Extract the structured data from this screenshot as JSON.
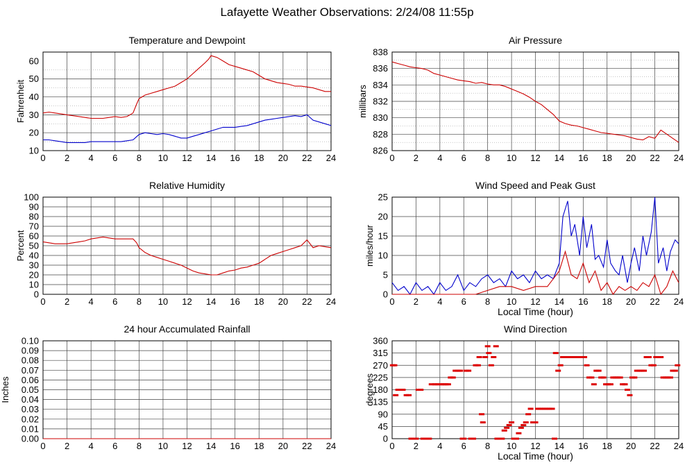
{
  "page_title": "Lafayette Weather Observations: 2/24/08 11:55p",
  "chart_data": [
    {
      "id": "temp",
      "type": "line",
      "title": "Temperature and Dewpoint",
      "xlabel": "",
      "ylabel": "Fahrenheit",
      "xlim": [
        0,
        24
      ],
      "ylim": [
        10,
        65
      ],
      "xticks": [
        0,
        2,
        4,
        6,
        8,
        10,
        12,
        14,
        16,
        18,
        20,
        22,
        24
      ],
      "yticks": [
        10,
        20,
        30,
        40,
        50,
        60
      ],
      "yticks_minor": [
        15,
        25,
        35,
        45,
        55
      ],
      "grid": true,
      "series": [
        {
          "color": "#cc0000",
          "x": [
            0,
            0.5,
            1,
            1.5,
            2,
            2.5,
            3,
            3.5,
            4,
            4.5,
            5,
            5.5,
            6,
            6.5,
            7,
            7.5,
            7.8,
            8,
            8.5,
            9,
            9.5,
            10,
            10.5,
            11,
            11.5,
            12,
            12.5,
            13,
            13.5,
            13.8,
            14,
            14.5,
            15,
            15.5,
            16,
            16.5,
            17,
            17.5,
            18,
            18.5,
            19,
            19.5,
            20,
            20.5,
            21,
            21.5,
            22,
            22.5,
            23,
            23.5,
            24
          ],
          "y": [
            31,
            31.5,
            31,
            30.5,
            30,
            29.5,
            29,
            28.5,
            28,
            28,
            28,
            28.5,
            29,
            28.5,
            29,
            31,
            36,
            39,
            41,
            42,
            43,
            44,
            45,
            46,
            48,
            50,
            53,
            56,
            59,
            61,
            63,
            62,
            60,
            58,
            57,
            56,
            55,
            54,
            52,
            50,
            49,
            48,
            47.5,
            47,
            46,
            46,
            45.5,
            45,
            44,
            43,
            43
          ]
        },
        {
          "color": "#0000cc",
          "x": [
            0,
            0.5,
            1,
            1.5,
            2,
            2.5,
            3,
            3.5,
            4,
            4.5,
            5,
            5.5,
            6,
            6.5,
            7,
            7.5,
            8,
            8.5,
            9,
            9.5,
            10,
            10.5,
            11,
            11.5,
            12,
            12.5,
            13,
            13.5,
            14,
            14.5,
            15,
            15.5,
            16,
            16.5,
            17,
            17.5,
            18,
            18.5,
            19,
            19.5,
            20,
            20.5,
            21,
            21.5,
            22,
            22.5,
            23,
            23.5,
            24
          ],
          "y": [
            16,
            16,
            15.5,
            15,
            14.5,
            14.5,
            14.5,
            14.5,
            15,
            15,
            15,
            15,
            15,
            15,
            15.5,
            16,
            19,
            20,
            19.5,
            19,
            19.5,
            19,
            18,
            17,
            17,
            18,
            19,
            20,
            21,
            22,
            23,
            23,
            23,
            23.5,
            24,
            25,
            26,
            27,
            27.5,
            28,
            28.5,
            29,
            29.5,
            29,
            30,
            27,
            26,
            25,
            24
          ]
        }
      ]
    },
    {
      "id": "pressure",
      "type": "line",
      "title": "Air Pressure",
      "xlabel": "",
      "ylabel": "millibars",
      "xlim": [
        0,
        24
      ],
      "ylim": [
        826,
        838
      ],
      "xticks": [
        0,
        2,
        4,
        6,
        8,
        10,
        12,
        14,
        16,
        18,
        20,
        22,
        24
      ],
      "yticks": [
        826,
        828,
        830,
        832,
        834,
        836,
        838
      ],
      "yticks_minor": [
        827,
        829,
        831,
        833,
        835,
        837
      ],
      "grid": true,
      "series": [
        {
          "color": "#cc0000",
          "x": [
            0,
            0.5,
            1,
            1.5,
            2,
            2.5,
            3,
            3.5,
            4,
            4.5,
            5,
            5.5,
            6,
            6.5,
            7,
            7.5,
            8,
            8.5,
            9,
            9.5,
            10,
            10.5,
            11,
            11.5,
            12,
            12.5,
            13,
            13.5,
            14,
            14.5,
            15,
            15.5,
            16,
            16.5,
            17,
            17.5,
            18,
            18.5,
            19,
            19.5,
            20,
            20.5,
            21,
            21.5,
            22,
            22.5,
            23,
            23.5,
            24
          ],
          "y": [
            836.8,
            836.6,
            836.4,
            836.2,
            836.1,
            836.0,
            835.8,
            835.4,
            835.2,
            835.0,
            834.8,
            834.6,
            834.5,
            834.4,
            834.2,
            834.3,
            834.1,
            834.0,
            834.0,
            833.8,
            833.5,
            833.2,
            832.9,
            832.5,
            832.0,
            831.6,
            831.0,
            830.4,
            829.6,
            829.3,
            829.1,
            829.0,
            828.8,
            828.6,
            828.4,
            828.2,
            828.1,
            828.0,
            827.9,
            827.8,
            827.6,
            827.4,
            827.3,
            827.7,
            827.5,
            828.5,
            828.0,
            827.5,
            827.0
          ]
        }
      ]
    },
    {
      "id": "humidity",
      "type": "line",
      "title": "Relative Humidity",
      "xlabel": "",
      "ylabel": "Percent",
      "xlim": [
        0,
        24
      ],
      "ylim": [
        0,
        100
      ],
      "xticks": [
        0,
        2,
        4,
        6,
        8,
        10,
        12,
        14,
        16,
        18,
        20,
        22,
        24
      ],
      "yticks": [
        0,
        10,
        20,
        30,
        40,
        50,
        60,
        70,
        80,
        90,
        100
      ],
      "yticks_minor": [],
      "grid": true,
      "series": [
        {
          "color": "#cc0000",
          "x": [
            0,
            0.5,
            1,
            1.5,
            2,
            2.5,
            3,
            3.5,
            4,
            4.5,
            5,
            5.5,
            6,
            6.5,
            7,
            7.5,
            7.8,
            8,
            8.5,
            9,
            9.5,
            10,
            10.5,
            11,
            11.5,
            12,
            12.5,
            13,
            13.5,
            14,
            14.5,
            15,
            15.5,
            16,
            16.5,
            17,
            17.5,
            18,
            18.5,
            19,
            19.5,
            20,
            20.5,
            21,
            21.5,
            22,
            22.5,
            23,
            23.5,
            24
          ],
          "y": [
            54,
            53,
            52,
            52,
            52,
            53,
            54,
            55,
            57,
            58,
            59,
            58,
            57,
            57,
            57,
            57,
            53,
            48,
            43,
            40,
            38,
            36,
            34,
            32,
            30,
            27,
            24,
            22,
            21,
            20,
            20,
            22,
            24,
            25,
            27,
            28,
            30,
            32,
            36,
            40,
            42,
            44,
            46,
            48,
            50,
            56,
            48,
            50,
            49,
            48
          ]
        }
      ]
    },
    {
      "id": "wind",
      "type": "line",
      "title": "Wind Speed and Peak Gust",
      "xlabel": "Local Time (hour)",
      "ylabel": "miles/hour",
      "xlim": [
        0,
        24
      ],
      "ylim": [
        0,
        25
      ],
      "xticks": [
        0,
        2,
        4,
        6,
        8,
        10,
        12,
        14,
        16,
        18,
        20,
        22,
        24
      ],
      "yticks": [
        0,
        5,
        10,
        15,
        20,
        25
      ],
      "yticks_minor": [],
      "grid": true,
      "series": [
        {
          "color": "#0000cc",
          "x": [
            0,
            0.5,
            1,
            1.5,
            2,
            2.5,
            3,
            3.5,
            4,
            4.5,
            5,
            5.5,
            6,
            6.5,
            7,
            7.5,
            8,
            8.5,
            9,
            9.5,
            10,
            10.5,
            11,
            11.5,
            12,
            12.5,
            13,
            13.5,
            14,
            14.3,
            14.7,
            15,
            15.3,
            15.7,
            16,
            16.3,
            16.7,
            17,
            17.3,
            17.7,
            18,
            18.3,
            18.7,
            19,
            19.3,
            19.7,
            20,
            20.3,
            20.7,
            21,
            21.3,
            21.7,
            22,
            22.3,
            22.7,
            23,
            23.3,
            23.7,
            24
          ],
          "y": [
            3,
            1,
            2,
            0,
            3,
            1,
            2,
            0,
            3,
            1,
            2,
            5,
            1,
            3,
            2,
            4,
            5,
            3,
            4,
            2,
            6,
            4,
            5,
            3,
            6,
            4,
            5,
            4,
            8,
            20,
            24,
            15,
            18,
            10,
            20,
            12,
            18,
            9,
            10,
            7,
            14,
            8,
            6,
            5,
            10,
            3,
            8,
            12,
            6,
            15,
            10,
            16,
            25,
            8,
            12,
            6,
            11,
            14,
            13
          ]
        },
        {
          "color": "#cc0000",
          "x": [
            0,
            1,
            2,
            3,
            4,
            5,
            6,
            7,
            8,
            9,
            10,
            11,
            12,
            13,
            14,
            14.5,
            15,
            15.5,
            16,
            16.5,
            17,
            17.5,
            18,
            18.5,
            19,
            19.5,
            20,
            20.5,
            21,
            21.5,
            22,
            22.5,
            23,
            23.5,
            24
          ],
          "y": [
            0,
            0,
            0,
            0,
            0,
            0,
            0,
            0,
            1,
            2,
            2,
            1,
            2,
            2,
            6,
            11,
            5,
            4,
            8,
            3,
            6,
            1,
            3,
            0,
            2,
            1,
            2,
            1,
            3,
            2,
            5,
            0,
            2,
            6,
            3
          ]
        }
      ]
    },
    {
      "id": "rain",
      "type": "line",
      "title": "24 hour Accumulated Rainfall",
      "xlabel": "",
      "ylabel": "Inches",
      "xlim": [
        0,
        24
      ],
      "ylim": [
        0,
        0.1
      ],
      "xticks": [
        0,
        2,
        4,
        6,
        8,
        10,
        12,
        14,
        16,
        18,
        20,
        22,
        24
      ],
      "yticks": [
        0.0,
        0.01,
        0.02,
        0.03,
        0.04,
        0.05,
        0.06,
        0.07,
        0.08,
        0.09,
        0.1
      ],
      "ytick_labels": [
        "0.00",
        "0.01",
        "0.02",
        "0.03",
        "0.04",
        "0.05",
        "0.06",
        "0.07",
        "0.08",
        "0.09",
        "0.10"
      ],
      "yticks_minor": [],
      "grid": true,
      "series": [
        {
          "color": "#cc0000",
          "x": [
            0,
            24
          ],
          "y": [
            0,
            0
          ]
        }
      ]
    },
    {
      "id": "winddir",
      "type": "scatter",
      "title": "Wind Direction",
      "xlabel": "Local Time (hour)",
      "ylabel": "degrees",
      "xlim": [
        0,
        24
      ],
      "ylim": [
        0,
        360
      ],
      "xticks": [
        0,
        2,
        4,
        6,
        8,
        10,
        12,
        14,
        16,
        18,
        20,
        22,
        24
      ],
      "yticks": [
        0,
        45,
        90,
        135,
        180,
        225,
        270,
        315,
        360
      ],
      "yticks_minor": [],
      "grid": true,
      "series": [
        {
          "color": "#dd0000",
          "x": [
            0.05,
            0.2,
            0.3,
            0.5,
            0.6,
            0.9,
            1.2,
            1.4,
            1.6,
            1.8,
            2.0,
            2.2,
            2.4,
            2.6,
            2.9,
            3.1,
            3.3,
            3.6,
            3.8,
            4.1,
            4.3,
            4.5,
            4.7,
            4.9,
            5.1,
            5.3,
            5.5,
            5.7,
            5.9,
            6.0,
            6.2,
            6.4,
            6.6,
            6.8,
            7.0,
            7.2,
            7.3,
            7.5,
            7.6,
            7.8,
            8.0,
            8.1,
            8.3,
            8.5,
            8.7,
            8.8,
            9.0,
            9.2,
            9.4,
            9.6,
            9.8,
            10.0,
            10.2,
            10.4,
            10.6,
            10.8,
            11.0,
            11.2,
            11.4,
            11.6,
            11.8,
            12.0,
            12.2,
            12.4,
            12.6,
            12.8,
            13.0,
            13.2,
            13.4,
            13.6,
            13.7,
            13.9,
            14.1,
            14.3,
            14.5,
            14.7,
            14.9,
            15.1,
            15.3,
            15.5,
            15.7,
            15.9,
            16.1,
            16.3,
            16.5,
            16.7,
            16.9,
            17.1,
            17.3,
            17.5,
            17.7,
            17.9,
            18.1,
            18.3,
            18.5,
            18.7,
            18.9,
            19.1,
            19.3,
            19.5,
            19.7,
            19.9,
            20.1,
            20.3,
            20.5,
            20.7,
            20.9,
            21.1,
            21.3,
            21.5,
            21.7,
            21.9,
            22.1,
            22.3,
            22.5,
            22.7,
            22.9,
            23.1,
            23.3,
            23.5,
            23.7,
            23.9
          ],
          "y": [
            270,
            270,
            160,
            180,
            180,
            180,
            160,
            160,
            0,
            0,
            0,
            180,
            180,
            0,
            0,
            0,
            200,
            200,
            200,
            200,
            200,
            200,
            200,
            225,
            225,
            250,
            250,
            250,
            0,
            0,
            250,
            250,
            0,
            0,
            270,
            270,
            300,
            90,
            60,
            300,
            340,
            315,
            270,
            300,
            340,
            0,
            0,
            0,
            30,
            40,
            50,
            60,
            0,
            0,
            20,
            40,
            50,
            60,
            90,
            110,
            60,
            60,
            110,
            110,
            110,
            110,
            110,
            110,
            110,
            0,
            315,
            250,
            270,
            300,
            300,
            300,
            300,
            300,
            300,
            300,
            300,
            300,
            300,
            270,
            225,
            225,
            200,
            250,
            250,
            225,
            225,
            200,
            200,
            200,
            225,
            225,
            225,
            225,
            200,
            200,
            180,
            160,
            225,
            225,
            250,
            250,
            250,
            250,
            300,
            300,
            270,
            270,
            300,
            300,
            300,
            225,
            225,
            225,
            225,
            250,
            250,
            270
          ]
        }
      ]
    }
  ]
}
